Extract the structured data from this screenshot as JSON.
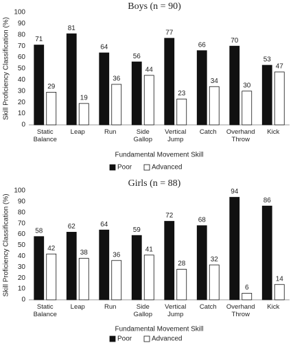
{
  "chart_data": [
    {
      "type": "bar",
      "title": "Boys (n = 90)",
      "y_label": "Skill Proficiency Classification (%)",
      "x_label": "Fundamental Movement Skill",
      "categories": [
        "Static Balance",
        "Leap",
        "Run",
        "Side Gallop",
        "Vertical Jump",
        "Catch",
        "Overhand Throw",
        "Kick"
      ],
      "series": [
        {
          "name": "Poor",
          "color": "#111111",
          "values": [
            71,
            81,
            64,
            56,
            77,
            66,
            70,
            53
          ]
        },
        {
          "name": "Advanced",
          "color": "#ffffff",
          "values": [
            29,
            19,
            36,
            44,
            23,
            34,
            30,
            47
          ]
        }
      ],
      "ylim": [
        0,
        100
      ],
      "yticks": [
        0,
        10,
        20,
        30,
        40,
        50,
        60,
        70,
        80,
        90,
        100
      ],
      "grid": false,
      "legend": "bottom"
    },
    {
      "type": "bar",
      "title": "Girls (n = 88)",
      "y_label": "Skill Proficiency Classification (%)",
      "x_label": "Fundamental Movement Skill",
      "categories": [
        "Static Balance",
        "Leap",
        "Run",
        "Side Gallop",
        "Vertical Jump",
        "Catch",
        "Overhand Throw",
        "Kick"
      ],
      "series": [
        {
          "name": "Poor",
          "color": "#111111",
          "values": [
            58,
            62,
            64,
            59,
            72,
            68,
            94,
            86
          ]
        },
        {
          "name": "Advanced",
          "color": "#ffffff",
          "values": [
            42,
            38,
            36,
            41,
            28,
            32,
            6,
            14
          ]
        }
      ],
      "ylim": [
        0,
        100
      ],
      "yticks": [
        0,
        10,
        20,
        30,
        40,
        50,
        60,
        70,
        80,
        90,
        100
      ],
      "grid": false,
      "legend": "bottom"
    }
  ]
}
